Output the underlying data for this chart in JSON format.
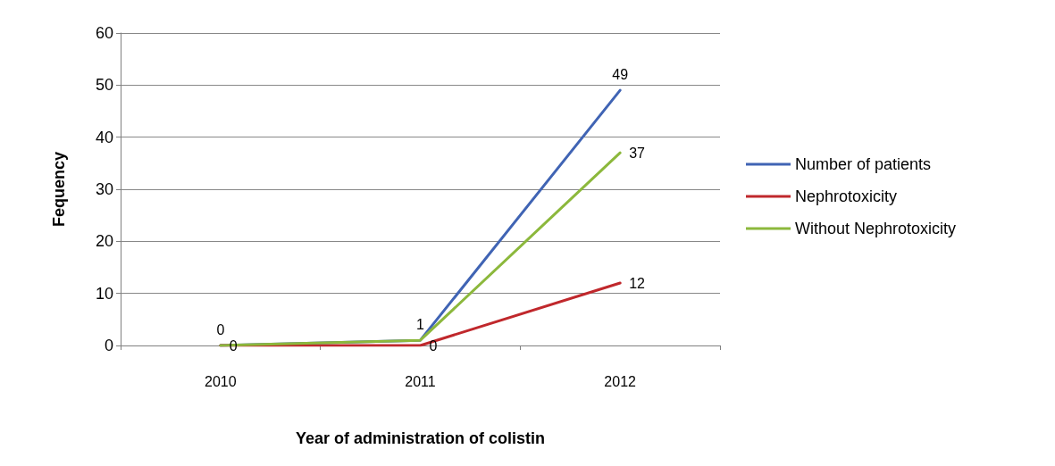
{
  "chart_data": {
    "type": "line",
    "xlabel": "Year of administration of colistin",
    "ylabel": "Fequency",
    "categories": [
      "2010",
      "2011",
      "2012"
    ],
    "series": [
      {
        "name": "Number of patients",
        "color": "#4064b4",
        "values": [
          0,
          1,
          49
        ],
        "value_labels": [
          "0",
          "1",
          "49"
        ]
      },
      {
        "name": "Nephrotoxicity",
        "color": "#c0282c",
        "values": [
          0,
          0,
          12
        ],
        "value_labels": [
          "0",
          "0",
          "12"
        ]
      },
      {
        "name": "Without Nephrotoxicity",
        "color": "#8cb83c",
        "values": [
          0,
          1,
          37
        ],
        "value_labels": [
          null,
          null,
          "37"
        ]
      }
    ],
    "ylim": [
      0,
      60
    ],
    "yticks": [
      0,
      10,
      20,
      30,
      40,
      50,
      60
    ],
    "grid": "y",
    "legend": "right",
    "marker": "none",
    "line_style": "solid"
  }
}
